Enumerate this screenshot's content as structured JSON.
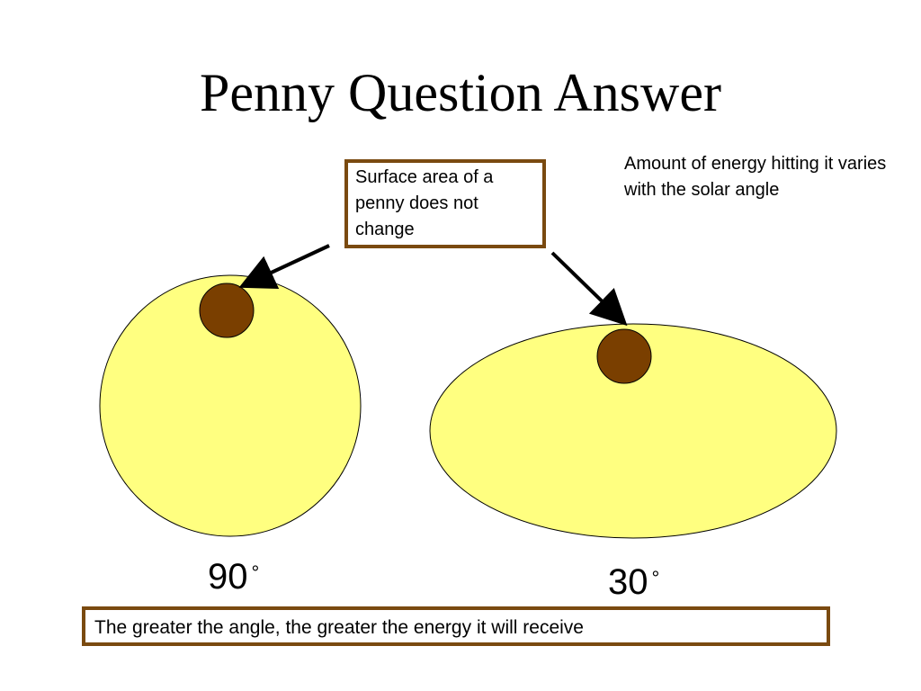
{
  "title": "Penny Question Answer",
  "notes": {
    "surface_area": "Surface area of a penny does not change",
    "energy": "Amount of energy hitting it varies with the solar angle"
  },
  "angles": {
    "high": "90",
    "low": "30",
    "degree_symbol": "°"
  },
  "conclusion": "The greater the angle, the greater the energy it will receive",
  "colors": {
    "sunlight_fill": "#ffff80",
    "penny_fill": "#7a3f00",
    "box_border": "#7a4a10"
  },
  "icons": {
    "arrow": "arrow-icon"
  }
}
